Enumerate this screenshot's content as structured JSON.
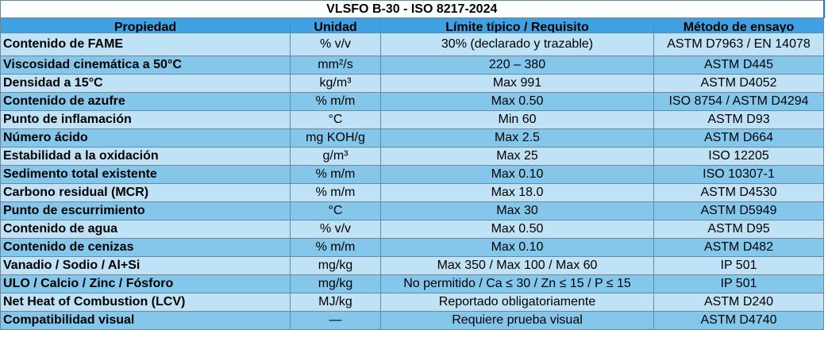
{
  "title": "VLSFO B-30  - ISO 8217-2024",
  "table": {
    "headers": [
      "Propiedad",
      "Unidad",
      "Límite típico / Requisito",
      "Método de ensayo"
    ],
    "rows": [
      [
        "Contenido de FAME",
        "% v/v",
        "30% (declarado y trazable)",
        "ASTM D7963 / EN 14078"
      ],
      [
        "Viscosidad cinemática a 50°C",
        "mm²/s",
        "220 – 380",
        "ASTM D445"
      ],
      [
        "Densidad a 15°C",
        "kg/m³",
        "Max 991",
        "ASTM D4052"
      ],
      [
        "Contenido de azufre",
        "% m/m",
        "Max 0.50",
        "ISO 8754 / ASTM D4294"
      ],
      [
        "Punto de inflamación",
        "°C",
        "Min 60",
        "ASTM D93"
      ],
      [
        "Número ácido",
        "mg KOH/g",
        "Max 2.5",
        "ASTM D664"
      ],
      [
        "Estabilidad a la oxidación",
        "g/m³",
        "Max 25",
        "ISO 12205"
      ],
      [
        "Sedimento total existente",
        "% m/m",
        "Max 0.10",
        "ISO 10307-1"
      ],
      [
        "Carbono residual (MCR)",
        "% m/m",
        "Max 18.0",
        "ASTM D4530"
      ],
      [
        "Punto de escurrimiento",
        "°C",
        "Max 30",
        "ASTM D5949"
      ],
      [
        "Contenido de agua",
        "% v/v",
        "Max 0.50",
        "ASTM D95"
      ],
      [
        "Contenido de cenizas",
        "% m/m",
        "Max 0.10",
        "ASTM D482"
      ],
      [
        "Vanadio / Sodio / Al+Si",
        "mg/kg",
        "Max 350 / Max 100 / Max 60",
        "IP 501"
      ],
      [
        "ULO / Calcio / Zinc / Fósforo",
        "mg/kg",
        "No permitido / Ca ≤ 30 / Zn ≤ 15 / P ≤ 15",
        "IP 501"
      ],
      [
        "Net Heat of Combustion (LCV)",
        "MJ/kg",
        "Reportado obligatoriamente",
        "ASTM D240"
      ],
      [
        "Compatibilidad visual",
        "—",
        "Requiere prueba visual",
        "ASTM D4740"
      ]
    ]
  }
}
